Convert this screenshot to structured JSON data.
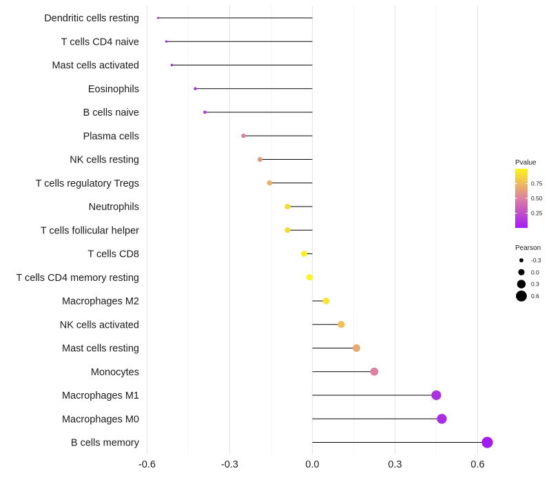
{
  "chart_data": {
    "type": "lollipop",
    "x_ticks": [
      -0.6,
      -0.3,
      0.0,
      0.3,
      0.6
    ],
    "x_tick_labels": [
      "-0.6",
      "-0.3",
      "0.0",
      "0.3",
      "0.6"
    ],
    "xlim": [
      -0.61,
      0.66
    ],
    "minor_gridlines": [
      -0.45,
      -0.15,
      0.15,
      0.45
    ],
    "categories": [
      "Dendritic cells resting",
      "T cells CD4 naive",
      "Mast cells activated",
      "Eosinophils",
      "B cells naive",
      "Plasma cells",
      "NK cells resting",
      "T cells regulatory  Tregs ",
      "Neutrophils",
      "T cells follicular helper",
      "T cells CD8",
      "T cells CD4 memory resting",
      "Macrophages M2",
      "NK cells activated",
      "Mast cells resting",
      "Monocytes",
      "Macrophages M1",
      "Macrophages M0",
      "B cells memory"
    ],
    "pearson": [
      -0.56,
      -0.53,
      -0.51,
      -0.425,
      -0.39,
      -0.25,
      -0.19,
      -0.155,
      -0.09,
      -0.09,
      -0.03,
      -0.01,
      0.05,
      0.105,
      0.16,
      0.225,
      0.45,
      0.47,
      0.635
    ],
    "pvalue": [
      0.01,
      0.02,
      0.03,
      0.12,
      0.16,
      0.48,
      0.6,
      0.7,
      0.88,
      0.88,
      0.97,
      0.99,
      0.93,
      0.78,
      0.68,
      0.5,
      0.1,
      0.08,
      0.005
    ],
    "legend": {
      "color_title": "Pvalue",
      "color_ticks": [
        0.25,
        0.5,
        0.75
      ],
      "color_tick_labels": [
        "0.25",
        "0.50",
        "0.75"
      ],
      "color_range": [
        0,
        1
      ],
      "color_low": "#a21cf4",
      "color_mid": "#dd80a0",
      "color_high": "#fff51a",
      "size_title": "Pearson",
      "size_values": [
        -0.3,
        0.0,
        0.3,
        0.6
      ],
      "size_labels": [
        "-0.3",
        "0.0",
        "0.3",
        "0.6"
      ]
    }
  }
}
